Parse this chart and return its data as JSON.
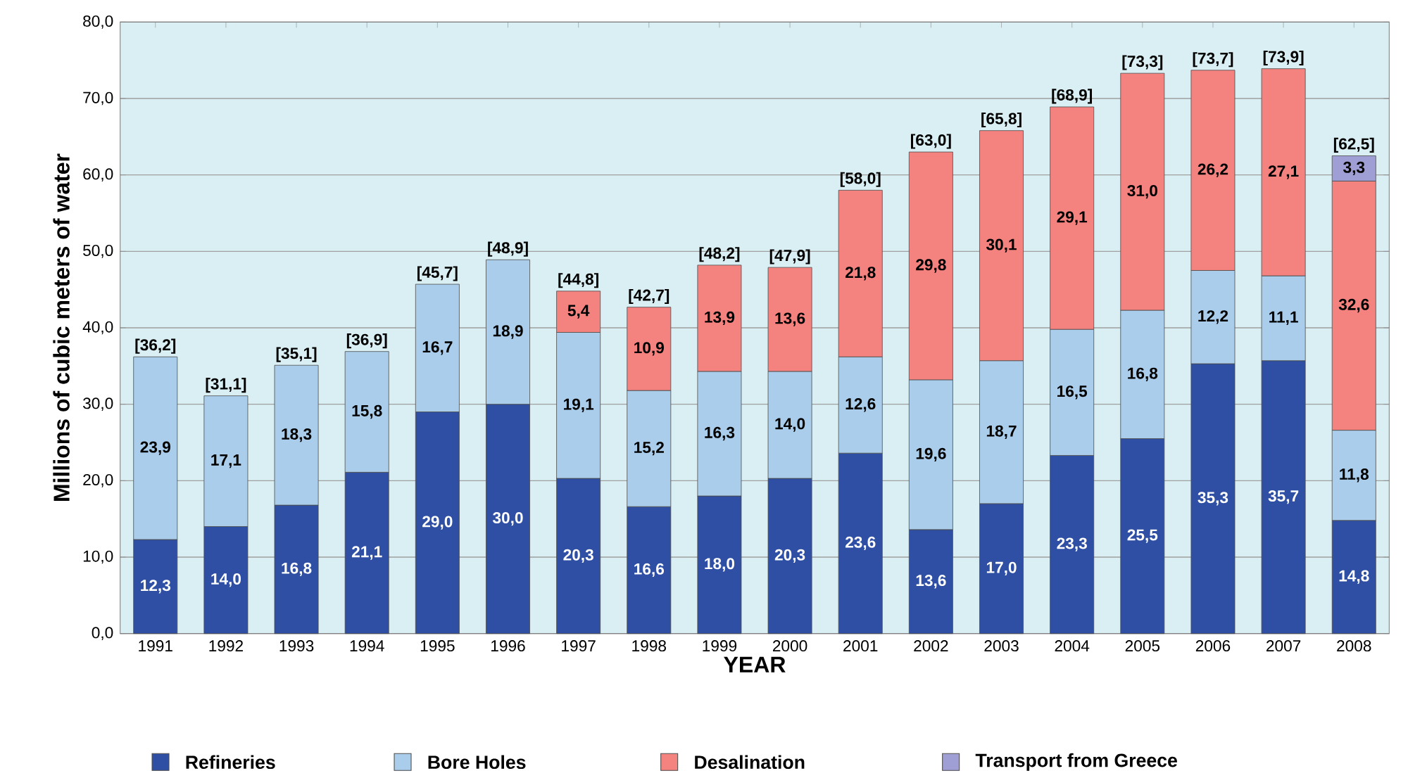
{
  "chart_data": {
    "type": "bar",
    "stacked": true,
    "xlabel": "YEAR",
    "ylabel": "Millions of cubic meters of water",
    "categories": [
      "1991",
      "1992",
      "1993",
      "1994",
      "1995",
      "1996",
      "1997",
      "1998",
      "1999",
      "2000",
      "2001",
      "2002",
      "2003",
      "2004",
      "2005",
      "2006",
      "2007",
      "2008"
    ],
    "series": [
      {
        "name": "Refineries",
        "color": "#2e4fa3",
        "values": [
          12.3,
          14.0,
          16.8,
          21.1,
          29.0,
          30.0,
          20.3,
          16.6,
          18.0,
          20.3,
          23.6,
          13.6,
          17.0,
          23.3,
          25.5,
          35.3,
          35.7,
          14.8
        ],
        "value_labels": [
          "12,3",
          "14,0",
          "16,8",
          "21,1",
          "29,0",
          "30,0",
          "20,3",
          "16,6",
          "18,0",
          "20,3",
          "23,6",
          "13,6",
          "17,0",
          "23,3",
          "25,5",
          "35,3",
          "35,7",
          "14,8"
        ]
      },
      {
        "name": "Bore Holes",
        "color": "#a9cdea",
        "values": [
          23.9,
          17.1,
          18.3,
          15.8,
          16.7,
          18.9,
          19.1,
          15.2,
          16.3,
          14.0,
          12.6,
          19.6,
          18.7,
          16.5,
          16.8,
          12.2,
          11.1,
          11.8
        ],
        "value_labels": [
          "23,9",
          "17,1",
          "18,3",
          "15,8",
          "16,7",
          "18,9",
          "19,1",
          "15,2",
          "16,3",
          "14,0",
          "12,6",
          "19,6",
          "18,7",
          "16,5",
          "16,8",
          "12,2",
          "11,1",
          "11,8"
        ]
      },
      {
        "name": "Desalination",
        "color": "#f4827f",
        "values": [
          null,
          null,
          null,
          null,
          null,
          null,
          5.4,
          10.9,
          13.9,
          13.6,
          21.8,
          29.8,
          30.1,
          29.1,
          31.0,
          26.2,
          27.1,
          32.6
        ],
        "value_labels": [
          null,
          null,
          null,
          null,
          null,
          null,
          "5,4",
          "10,9",
          "13,9",
          "13,6",
          "21,8",
          "29,8",
          "30,1",
          "29,1",
          "31,0",
          "26,2",
          "27,1",
          "32,6"
        ]
      },
      {
        "name": "Transport from Greece",
        "color": "#9f9fd6",
        "values": [
          null,
          null,
          null,
          null,
          null,
          null,
          null,
          null,
          null,
          null,
          null,
          null,
          null,
          null,
          null,
          null,
          null,
          3.3
        ],
        "value_labels": [
          null,
          null,
          null,
          null,
          null,
          null,
          null,
          null,
          null,
          null,
          null,
          null,
          null,
          null,
          null,
          null,
          null,
          "3,3"
        ]
      }
    ],
    "totals": [
      "[36,2]",
      "[31,1]",
      "[35,1]",
      "[36,9]",
      "[45,7]",
      "[48,9]",
      "[44,8]",
      "[42,7]",
      "[48,2]",
      "[47,9]",
      "[58,0]",
      "[63,0]",
      "[65,8]",
      "[68,9]",
      "[73,3]",
      "[73,7]",
      "[73,9]",
      "[62,5]"
    ],
    "ylim": [
      0,
      80
    ],
    "yticks": [
      {
        "value": 0,
        "label": "0,0"
      },
      {
        "value": 10,
        "label": "10,0"
      },
      {
        "value": 20,
        "label": "20,0"
      },
      {
        "value": 30,
        "label": "30,0"
      },
      {
        "value": 40,
        "label": "40,0"
      },
      {
        "value": 50,
        "label": "50,0"
      },
      {
        "value": 60,
        "label": "60,0"
      },
      {
        "value": 70,
        "label": "70,0"
      },
      {
        "value": 80,
        "label": "80,0"
      }
    ],
    "grid": "y",
    "legend": "bottom"
  }
}
